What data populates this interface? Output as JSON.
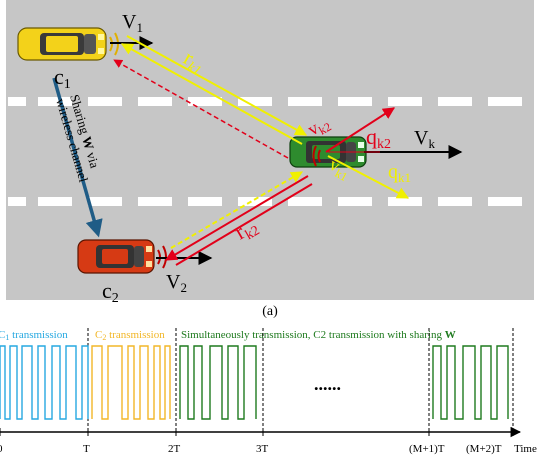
{
  "colors": {
    "road": "#c6c6c6",
    "lane_mark": "#ffffff",
    "yellow_link": "#f0f000",
    "red_link": "#e2001a",
    "share_arrow": "#1f5c86",
    "c1_signal": "#27a9e1",
    "c2_signal": "#f2b728",
    "sim_signal": "#1e7a1e",
    "car_yellow": "#f3d21a",
    "car_red": "#d63a14",
    "car_green": "#2e8b2e"
  },
  "road": {
    "vehicles": [
      {
        "id": "c1",
        "label": "c",
        "sub": "1",
        "velocity": "V",
        "velocity_sub": "1"
      },
      {
        "id": "c2",
        "label": "c",
        "sub": "2",
        "velocity": "V",
        "velocity_sub": "2"
      },
      {
        "id": "k",
        "velocity": "V",
        "velocity_sub": "k"
      }
    ],
    "link_labels": {
      "r_k1": {
        "base": "r",
        "sub": "k1"
      },
      "r_k2": {
        "base": "r",
        "sub": "k2"
      },
      "v_k2": {
        "base": "v",
        "sub": "k2"
      },
      "v_k1": {
        "base": "v",
        "sub": "k1"
      },
      "q_k2": {
        "base": "q",
        "sub": "k2"
      },
      "q_k1": {
        "base": "q",
        "sub": "k1"
      }
    },
    "share_label": {
      "line1": "Sharing ",
      "bold": "W",
      "line1_end": " via",
      "line2": "wireless channel"
    }
  },
  "caption": "(a)",
  "timeline": {
    "phase_labels": [
      {
        "text": "C",
        "sub": "1",
        "rest": " transmission",
        "color_key": "c1_signal"
      },
      {
        "text": "C",
        "sub": "2",
        "rest": " transmission",
        "color_key": "c2_signal"
      },
      {
        "text": "Simultaneously transmission,  C2 transmission with sharing ",
        "bold": "W",
        "color_key": "sim_signal"
      }
    ],
    "ellipsis": "......",
    "ticks": [
      "0",
      "T",
      "2T",
      "3T",
      "(M+1)T",
      "(M+2)T"
    ],
    "axis_label": "Time"
  }
}
